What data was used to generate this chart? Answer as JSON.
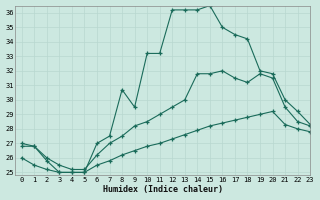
{
  "xlabel": "Humidex (Indice chaleur)",
  "ylabel": "",
  "bg_color": "#cce8e0",
  "grid_color": "#b8d8d0",
  "line_color": "#1a6b5a",
  "xlim": [
    -0.5,
    23
  ],
  "ylim": [
    24.8,
    36.5
  ],
  "yticks": [
    25,
    26,
    27,
    28,
    29,
    30,
    31,
    32,
    33,
    34,
    35,
    36
  ],
  "xticks": [
    0,
    1,
    2,
    3,
    4,
    5,
    6,
    7,
    8,
    9,
    10,
    11,
    12,
    13,
    14,
    15,
    16,
    17,
    18,
    19,
    20,
    21,
    22,
    23
  ],
  "series1_x": [
    0,
    1,
    2,
    3,
    4,
    5,
    6,
    7,
    8,
    9,
    10,
    11,
    12,
    13,
    14,
    15,
    16,
    17,
    18,
    19,
    20,
    21,
    22,
    23
  ],
  "series1_y": [
    27.0,
    26.8,
    25.8,
    25.0,
    25.0,
    25.0,
    27.0,
    27.5,
    30.7,
    29.5,
    33.2,
    33.2,
    36.2,
    36.2,
    36.2,
    36.5,
    35.0,
    34.5,
    34.2,
    32.0,
    31.8,
    30.0,
    29.2,
    28.3
  ],
  "series2_x": [
    0,
    1,
    2,
    3,
    4,
    5,
    6,
    7,
    8,
    9,
    10,
    11,
    12,
    13,
    14,
    15,
    16,
    17,
    18,
    19,
    20,
    21,
    22,
    23
  ],
  "series2_y": [
    26.8,
    26.8,
    26.0,
    25.5,
    25.2,
    25.2,
    26.2,
    27.0,
    27.5,
    28.2,
    28.5,
    29.0,
    29.5,
    30.0,
    31.8,
    31.8,
    32.0,
    31.5,
    31.2,
    31.8,
    31.5,
    29.5,
    28.5,
    28.2
  ],
  "series3_x": [
    0,
    1,
    2,
    3,
    4,
    5,
    6,
    7,
    8,
    9,
    10,
    11,
    12,
    13,
    14,
    15,
    16,
    17,
    18,
    19,
    20,
    21,
    22,
    23
  ],
  "series3_y": [
    26.0,
    25.5,
    25.2,
    25.0,
    25.0,
    25.0,
    25.5,
    25.8,
    26.2,
    26.5,
    26.8,
    27.0,
    27.3,
    27.6,
    27.9,
    28.2,
    28.4,
    28.6,
    28.8,
    29.0,
    29.2,
    28.3,
    28.0,
    27.8
  ]
}
